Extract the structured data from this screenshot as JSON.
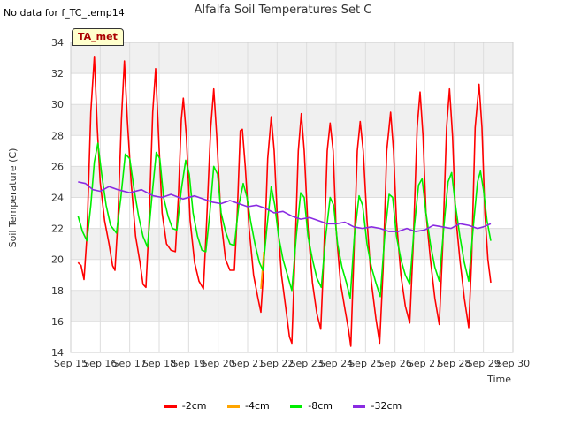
{
  "header": {
    "nodata_text": "No data for f_TC_temp14",
    "title": "Alfalfa Soil Temperatures Set C",
    "badge": "TA_met"
  },
  "chart_data": {
    "type": "line",
    "title": "Alfalfa Soil Temperatures Set C",
    "xlabel": "Time",
    "ylabel": "Soil Temperature (C)",
    "xlim": [
      15,
      30
    ],
    "ylim": [
      14,
      34
    ],
    "yticks": [
      14,
      16,
      18,
      20,
      22,
      24,
      26,
      28,
      30,
      32,
      34
    ],
    "xticks": [
      {
        "value": 15,
        "label": "Sep 15"
      },
      {
        "value": 16,
        "label": "Sep 16"
      },
      {
        "value": 17,
        "label": "Sep 17"
      },
      {
        "value": 18,
        "label": "Sep 18"
      },
      {
        "value": 19,
        "label": "Sep 19"
      },
      {
        "value": 20,
        "label": "Sep 20"
      },
      {
        "value": 21,
        "label": "Sep 21"
      },
      {
        "value": 22,
        "label": "Sep 22"
      },
      {
        "value": 23,
        "label": "Sep 23"
      },
      {
        "value": 24,
        "label": "Sep 24"
      },
      {
        "value": 25,
        "label": "Sep 25"
      },
      {
        "value": 26,
        "label": "Sep 26"
      },
      {
        "value": 27,
        "label": "Sep 27"
      },
      {
        "value": 28,
        "label": "Sep 28"
      },
      {
        "value": 29,
        "label": "Sep 29"
      },
      {
        "value": 30,
        "label": "Sep 30"
      }
    ],
    "grid": true,
    "legend_position": "bottom",
    "series": [
      {
        "name": "-2cm",
        "color": "#ff0000",
        "points": [
          [
            15.25,
            19.8
          ],
          [
            15.35,
            19.6
          ],
          [
            15.45,
            18.7
          ],
          [
            15.55,
            21.5
          ],
          [
            15.68,
            29.5
          ],
          [
            15.8,
            33.1
          ],
          [
            15.9,
            28.5
          ],
          [
            16.0,
            25.0
          ],
          [
            16.15,
            22.5
          ],
          [
            16.3,
            21.0
          ],
          [
            16.42,
            19.6
          ],
          [
            16.5,
            19.3
          ],
          [
            16.6,
            22.5
          ],
          [
            16.72,
            29.0
          ],
          [
            16.82,
            32.8
          ],
          [
            16.92,
            29.0
          ],
          [
            17.05,
            25.0
          ],
          [
            17.2,
            21.5
          ],
          [
            17.35,
            19.8
          ],
          [
            17.45,
            18.4
          ],
          [
            17.55,
            18.2
          ],
          [
            17.65,
            22.0
          ],
          [
            17.78,
            29.5
          ],
          [
            17.88,
            32.3
          ],
          [
            17.98,
            28.0
          ],
          [
            18.1,
            23.0
          ],
          [
            18.25,
            21.0
          ],
          [
            18.4,
            20.6
          ],
          [
            18.55,
            20.5
          ],
          [
            18.65,
            24.0
          ],
          [
            18.75,
            29.0
          ],
          [
            18.82,
            30.4
          ],
          [
            18.92,
            28.0
          ],
          [
            19.05,
            22.5
          ],
          [
            19.2,
            19.8
          ],
          [
            19.35,
            18.6
          ],
          [
            19.5,
            18.1
          ],
          [
            19.6,
            22.0
          ],
          [
            19.75,
            28.5
          ],
          [
            19.85,
            31.0
          ],
          [
            19.95,
            28.0
          ],
          [
            20.1,
            22.5
          ],
          [
            20.25,
            20.0
          ],
          [
            20.4,
            19.3
          ],
          [
            20.55,
            19.3
          ],
          [
            20.65,
            23.0
          ],
          [
            20.75,
            28.3
          ],
          [
            20.82,
            28.4
          ],
          [
            20.92,
            26.0
          ],
          [
            21.05,
            22.0
          ],
          [
            21.2,
            19.0
          ],
          [
            21.35,
            17.5
          ],
          [
            21.45,
            16.6
          ],
          [
            21.55,
            19.5
          ],
          [
            21.68,
            26.5
          ],
          [
            21.8,
            29.2
          ],
          [
            21.9,
            27.0
          ],
          [
            22.0,
            23.0
          ],
          [
            22.15,
            19.0
          ],
          [
            22.3,
            16.8
          ],
          [
            22.42,
            15.0
          ],
          [
            22.5,
            14.6
          ],
          [
            22.6,
            20.0
          ],
          [
            22.72,
            27.0
          ],
          [
            22.82,
            29.4
          ],
          [
            22.92,
            27.0
          ],
          [
            23.05,
            22.0
          ],
          [
            23.2,
            18.5
          ],
          [
            23.35,
            16.5
          ],
          [
            23.48,
            15.5
          ],
          [
            23.58,
            20.0
          ],
          [
            23.7,
            27.0
          ],
          [
            23.8,
            28.8
          ],
          [
            23.9,
            27.0
          ],
          [
            24.0,
            22.0
          ],
          [
            24.15,
            18.5
          ],
          [
            24.3,
            16.8
          ],
          [
            24.42,
            15.5
          ],
          [
            24.5,
            14.4
          ],
          [
            24.6,
            20.0
          ],
          [
            24.72,
            27.0
          ],
          [
            24.82,
            28.9
          ],
          [
            24.92,
            27.0
          ],
          [
            25.05,
            22.5
          ],
          [
            25.2,
            18.5
          ],
          [
            25.35,
            16.2
          ],
          [
            25.48,
            14.6
          ],
          [
            25.6,
            19.5
          ],
          [
            25.72,
            27.0
          ],
          [
            25.85,
            29.5
          ],
          [
            25.95,
            27.0
          ],
          [
            26.05,
            22.5
          ],
          [
            26.2,
            19.0
          ],
          [
            26.35,
            17.0
          ],
          [
            26.5,
            15.9
          ],
          [
            26.62,
            21.0
          ],
          [
            26.75,
            28.5
          ],
          [
            26.85,
            30.8
          ],
          [
            26.95,
            28.0
          ],
          [
            27.05,
            23.0
          ],
          [
            27.2,
            20.0
          ],
          [
            27.35,
            17.5
          ],
          [
            27.5,
            15.8
          ],
          [
            27.62,
            21.0
          ],
          [
            27.75,
            28.5
          ],
          [
            27.85,
            31.0
          ],
          [
            27.95,
            28.0
          ],
          [
            28.05,
            23.0
          ],
          [
            28.2,
            20.0
          ],
          [
            28.35,
            17.5
          ],
          [
            28.5,
            15.6
          ],
          [
            28.6,
            20.0
          ],
          [
            28.72,
            28.5
          ],
          [
            28.85,
            31.3
          ],
          [
            28.95,
            28.5
          ],
          [
            29.05,
            23.0
          ],
          [
            29.15,
            20.0
          ],
          [
            29.25,
            18.5
          ]
        ]
      },
      {
        "name": "-4cm",
        "color": "#ffa500",
        "points": [
          [
            21.45,
            18.1
          ],
          [
            21.55,
            20.5
          ]
        ]
      },
      {
        "name": "-8cm",
        "color": "#00ee00",
        "points": [
          [
            15.25,
            22.8
          ],
          [
            15.4,
            21.8
          ],
          [
            15.55,
            21.2
          ],
          [
            15.68,
            23.5
          ],
          [
            15.8,
            26.3
          ],
          [
            15.92,
            27.5
          ],
          [
            16.05,
            25.5
          ],
          [
            16.2,
            23.5
          ],
          [
            16.35,
            22.2
          ],
          [
            16.55,
            21.7
          ],
          [
            16.7,
            24.0
          ],
          [
            16.85,
            26.8
          ],
          [
            17.0,
            26.5
          ],
          [
            17.15,
            24.5
          ],
          [
            17.3,
            22.8
          ],
          [
            17.45,
            21.5
          ],
          [
            17.6,
            20.8
          ],
          [
            17.75,
            24.0
          ],
          [
            17.9,
            26.9
          ],
          [
            18.02,
            26.5
          ],
          [
            18.15,
            24.0
          ],
          [
            18.3,
            22.8
          ],
          [
            18.45,
            22.0
          ],
          [
            18.6,
            21.9
          ],
          [
            18.75,
            24.5
          ],
          [
            18.9,
            26.4
          ],
          [
            19.02,
            25.5
          ],
          [
            19.15,
            23.0
          ],
          [
            19.3,
            21.5
          ],
          [
            19.45,
            20.6
          ],
          [
            19.58,
            20.5
          ],
          [
            19.72,
            23.0
          ],
          [
            19.85,
            26.0
          ],
          [
            19.98,
            25.5
          ],
          [
            20.1,
            23.0
          ],
          [
            20.25,
            21.8
          ],
          [
            20.4,
            21.0
          ],
          [
            20.55,
            20.9
          ],
          [
            20.7,
            23.5
          ],
          [
            20.85,
            24.9
          ],
          [
            20.98,
            24.0
          ],
          [
            21.1,
            22.5
          ],
          [
            21.25,
            21.0
          ],
          [
            21.4,
            19.8
          ],
          [
            21.52,
            19.3
          ],
          [
            21.65,
            22.0
          ],
          [
            21.8,
            24.7
          ],
          [
            21.92,
            23.5
          ],
          [
            22.05,
            21.5
          ],
          [
            22.2,
            20.0
          ],
          [
            22.35,
            19.0
          ],
          [
            22.5,
            18.0
          ],
          [
            22.65,
            21.5
          ],
          [
            22.8,
            24.3
          ],
          [
            22.92,
            24.0
          ],
          [
            23.05,
            21.5
          ],
          [
            23.2,
            20.0
          ],
          [
            23.35,
            18.8
          ],
          [
            23.5,
            18.2
          ],
          [
            23.65,
            21.5
          ],
          [
            23.8,
            24.0
          ],
          [
            23.92,
            23.5
          ],
          [
            24.05,
            21.0
          ],
          [
            24.2,
            19.5
          ],
          [
            24.35,
            18.5
          ],
          [
            24.48,
            17.5
          ],
          [
            24.62,
            21.5
          ],
          [
            24.78,
            24.1
          ],
          [
            24.9,
            23.5
          ],
          [
            25.05,
            21.0
          ],
          [
            25.2,
            19.5
          ],
          [
            25.35,
            18.5
          ],
          [
            25.5,
            17.6
          ],
          [
            25.65,
            21.5
          ],
          [
            25.8,
            24.2
          ],
          [
            25.92,
            24.0
          ],
          [
            26.05,
            21.5
          ],
          [
            26.2,
            20.0
          ],
          [
            26.35,
            19.0
          ],
          [
            26.5,
            18.4
          ],
          [
            26.65,
            22.0
          ],
          [
            26.8,
            24.8
          ],
          [
            26.92,
            25.2
          ],
          [
            27.05,
            23.0
          ],
          [
            27.2,
            21.0
          ],
          [
            27.35,
            19.5
          ],
          [
            27.5,
            18.6
          ],
          [
            27.65,
            22.0
          ],
          [
            27.8,
            25.0
          ],
          [
            27.92,
            25.6
          ],
          [
            28.05,
            23.5
          ],
          [
            28.2,
            21.5
          ],
          [
            28.35,
            19.8
          ],
          [
            28.5,
            18.6
          ],
          [
            28.65,
            22.0
          ],
          [
            28.8,
            25.0
          ],
          [
            28.9,
            25.7
          ],
          [
            29.0,
            24.5
          ],
          [
            29.12,
            22.5
          ],
          [
            29.25,
            21.2
          ]
        ]
      },
      {
        "name": "-32cm",
        "color": "#8a2be2",
        "points": [
          [
            15.25,
            25.0
          ],
          [
            15.5,
            24.9
          ],
          [
            15.75,
            24.5
          ],
          [
            16.0,
            24.4
          ],
          [
            16.3,
            24.7
          ],
          [
            16.6,
            24.5
          ],
          [
            17.0,
            24.3
          ],
          [
            17.4,
            24.5
          ],
          [
            17.8,
            24.1
          ],
          [
            18.1,
            24.0
          ],
          [
            18.4,
            24.2
          ],
          [
            18.8,
            23.9
          ],
          [
            19.2,
            24.1
          ],
          [
            19.5,
            23.9
          ],
          [
            19.8,
            23.7
          ],
          [
            20.1,
            23.6
          ],
          [
            20.4,
            23.8
          ],
          [
            20.7,
            23.6
          ],
          [
            21.0,
            23.4
          ],
          [
            21.3,
            23.5
          ],
          [
            21.6,
            23.3
          ],
          [
            21.9,
            23.0
          ],
          [
            22.2,
            23.1
          ],
          [
            22.5,
            22.8
          ],
          [
            22.8,
            22.6
          ],
          [
            23.1,
            22.7
          ],
          [
            23.4,
            22.5
          ],
          [
            23.7,
            22.3
          ],
          [
            24.0,
            22.3
          ],
          [
            24.3,
            22.4
          ],
          [
            24.6,
            22.1
          ],
          [
            24.9,
            22.0
          ],
          [
            25.2,
            22.1
          ],
          [
            25.5,
            22.0
          ],
          [
            25.8,
            21.8
          ],
          [
            26.1,
            21.8
          ],
          [
            26.4,
            22.0
          ],
          [
            26.7,
            21.8
          ],
          [
            27.0,
            21.9
          ],
          [
            27.3,
            22.2
          ],
          [
            27.6,
            22.1
          ],
          [
            27.9,
            22.0
          ],
          [
            28.2,
            22.3
          ],
          [
            28.5,
            22.2
          ],
          [
            28.8,
            22.0
          ],
          [
            29.0,
            22.1
          ],
          [
            29.25,
            22.3
          ]
        ]
      }
    ]
  }
}
